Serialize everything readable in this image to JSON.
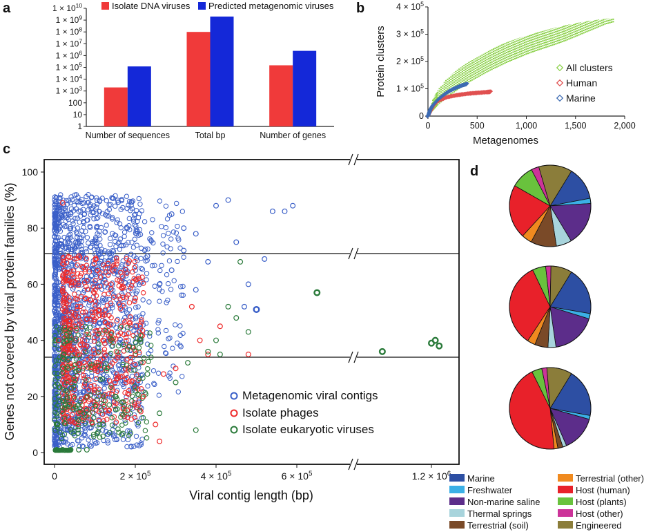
{
  "panel_letters": [
    "a",
    "b",
    "c",
    "d"
  ],
  "colors": {
    "isolate_dna": "#f03a3a",
    "predicted_meta": "#1428d8",
    "all_clusters": "#8cd14a",
    "human": "#e05050",
    "marine": "#3d6bb3",
    "meta_contig": "#3a5fc8",
    "isolate_phage": "#ee2a2a",
    "isolate_euk": "#2a7a3a"
  },
  "chart_data": [
    {
      "panel": "a",
      "type": "bar",
      "categories": [
        "Number of sequences",
        "Total bp",
        "Number of genes"
      ],
      "series": [
        {
          "name": "Isolate DNA viruses",
          "values": [
            2000,
            100000000,
            150000
          ]
        },
        {
          "name": "Predicted metagenomic viruses",
          "values": [
            120000,
            2000000000,
            2500000
          ]
        }
      ],
      "yscale": "log",
      "ylim": [
        1,
        10000000000
      ],
      "ytick_labels": [
        "1",
        "10",
        "100",
        "1 × 10^3",
        "1 × 10^4",
        "1 × 10^5",
        "1 × 10^6",
        "1 × 10^7",
        "1 × 10^8",
        "1 × 10^9",
        "1 × 10^10"
      ],
      "legend_position": "top"
    },
    {
      "panel": "b",
      "type": "scatter",
      "xlabel": "Metagenomes",
      "ylabel": "Protein clusters",
      "xlim": [
        0,
        2000
      ],
      "ylim": [
        0,
        400000
      ],
      "xtick_labels": [
        "0",
        "500",
        "1,000",
        "1,500",
        "2,000"
      ],
      "ytick_labels": [
        "0",
        "1 × 10^5",
        "2 × 10^5",
        "3 × 10^5",
        "4 × 10^5"
      ],
      "series": [
        {
          "name": "All clusters",
          "x": [
            0,
            50,
            100,
            200,
            300,
            400,
            500,
            600,
            700,
            800,
            900,
            1000,
            1100,
            1200,
            1300,
            1400,
            1500,
            1600,
            1700,
            1800,
            1900
          ],
          "y_low": [
            0,
            20000,
            40000,
            70000,
            95000,
            120000,
            140000,
            160000,
            178000,
            195000,
            210000,
            225000,
            238000,
            250000,
            262000,
            275000,
            290000,
            305000,
            320000,
            335000,
            345000
          ],
          "y_high": [
            0,
            60000,
            95000,
            140000,
            170000,
            195000,
            215000,
            235000,
            255000,
            270000,
            283000,
            295000,
            305000,
            315000,
            325000,
            333000,
            340000,
            347000,
            352000,
            356000,
            360000
          ]
        },
        {
          "name": "Human",
          "x": [
            0,
            50,
            100,
            200,
            300,
            400,
            500,
            600,
            640
          ],
          "y": [
            0,
            35000,
            55000,
            70000,
            77000,
            82000,
            85000,
            88000,
            89000
          ]
        },
        {
          "name": "Marine",
          "x": [
            0,
            25,
            50,
            100,
            150,
            200,
            250,
            300,
            350,
            400
          ],
          "y": [
            0,
            25000,
            40000,
            60000,
            75000,
            88000,
            98000,
            106000,
            113000,
            118000
          ]
        }
      ],
      "legend_position": "right"
    },
    {
      "panel": "c",
      "type": "scatter",
      "xlabel": "Viral contig length (bp)",
      "ylabel": "Genes not covered by viral protein families (%)",
      "ylim": [
        0,
        100
      ],
      "xtick_labels": [
        "0",
        "2 × 10^5",
        "4 × 10^5",
        "6 × 10^5",
        "1.2 × 10^6"
      ],
      "ytick_labels": [
        "0",
        "20",
        "40",
        "60",
        "80",
        "100"
      ],
      "axis_breaks": true,
      "series": [
        {
          "name": "Metagenomic viral contigs",
          "x": [
            5000,
            20000,
            40000,
            60000,
            80000,
            100000,
            120000,
            150000,
            180000,
            200000,
            230000,
            260000,
            290000,
            320000,
            350000,
            380000,
            400000,
            430000,
            450000,
            470000,
            480000,
            500000,
            520000,
            540000,
            570000,
            590000,
            290000,
            320000,
            350000
          ],
          "y": [
            50,
            70,
            85,
            60,
            40,
            75,
            55,
            65,
            80,
            45,
            70,
            60,
            85,
            72,
            78,
            68,
            88,
            90,
            75,
            52,
            60,
            51,
            69,
            86,
            86,
            88,
            65,
            80,
            58
          ]
        },
        {
          "name": "Isolate phages",
          "x": [
            10000,
            20000,
            30000,
            40000,
            50000,
            60000,
            70000,
            80000,
            100000,
            120000,
            150000,
            180000,
            200000,
            220000,
            250000,
            270000,
            300000,
            340000,
            360000,
            380000,
            410000,
            480000,
            20000,
            60000,
            140000,
            200000,
            260000
          ],
          "y": [
            40,
            30,
            55,
            25,
            45,
            35,
            50,
            20,
            30,
            40,
            25,
            15,
            35,
            20,
            10,
            28,
            30,
            52,
            40,
            35,
            45,
            35,
            89,
            70,
            60,
            55,
            4
          ]
        },
        {
          "name": "Isolate eukaryotic viruses",
          "x": [
            5000,
            10000,
            20000,
            30000,
            50000,
            80000,
            120000,
            150000,
            170000,
            200000,
            230000,
            260000,
            300000,
            330000,
            350000,
            380000,
            400000,
            450000,
            480000,
            410000,
            430000,
            460000,
            650000,
            820000,
            1200000,
            1230000,
            1260000,
            5000,
            20000,
            40000,
            60000,
            80000
          ],
          "y": [
            10,
            20,
            30,
            40,
            25,
            15,
            10,
            20,
            18,
            22,
            28,
            14,
            25,
            32,
            8,
            36,
            40,
            48,
            43,
            35,
            52,
            68,
            57,
            36,
            39,
            40,
            38,
            1,
            1,
            1,
            1,
            1
          ]
        }
      ],
      "legend_position": "bottom-right"
    },
    {
      "panel": "d",
      "type": "pie",
      "categories": [
        "Marine",
        "Freshwater",
        "Non-marine saline",
        "Thermal springs",
        "Terrestrial (soil)",
        "Terrestrial (other)",
        "Host (human)",
        "Host (plants)",
        "Host (other)",
        "Engineered"
      ],
      "colors": [
        "#2d4fa3",
        "#3bb0e6",
        "#5c2d8a",
        "#a8d4dc",
        "#7a4a28",
        "#f08a1f",
        "#e8212a",
        "#69c23d",
        "#cc3399",
        "#8b7d3a"
      ],
      "pies": [
        {
          "values": [
            13,
            2,
            17,
            6,
            10,
            4,
            21,
            9,
            3,
            13
          ]
        },
        {
          "values": [
            18,
            2,
            17,
            3,
            5,
            3,
            32,
            5,
            2,
            8
          ]
        },
        {
          "values": [
            19,
            1.5,
            14,
            1.5,
            2,
            1.5,
            44,
            4,
            2,
            10
          ]
        }
      ]
    }
  ]
}
